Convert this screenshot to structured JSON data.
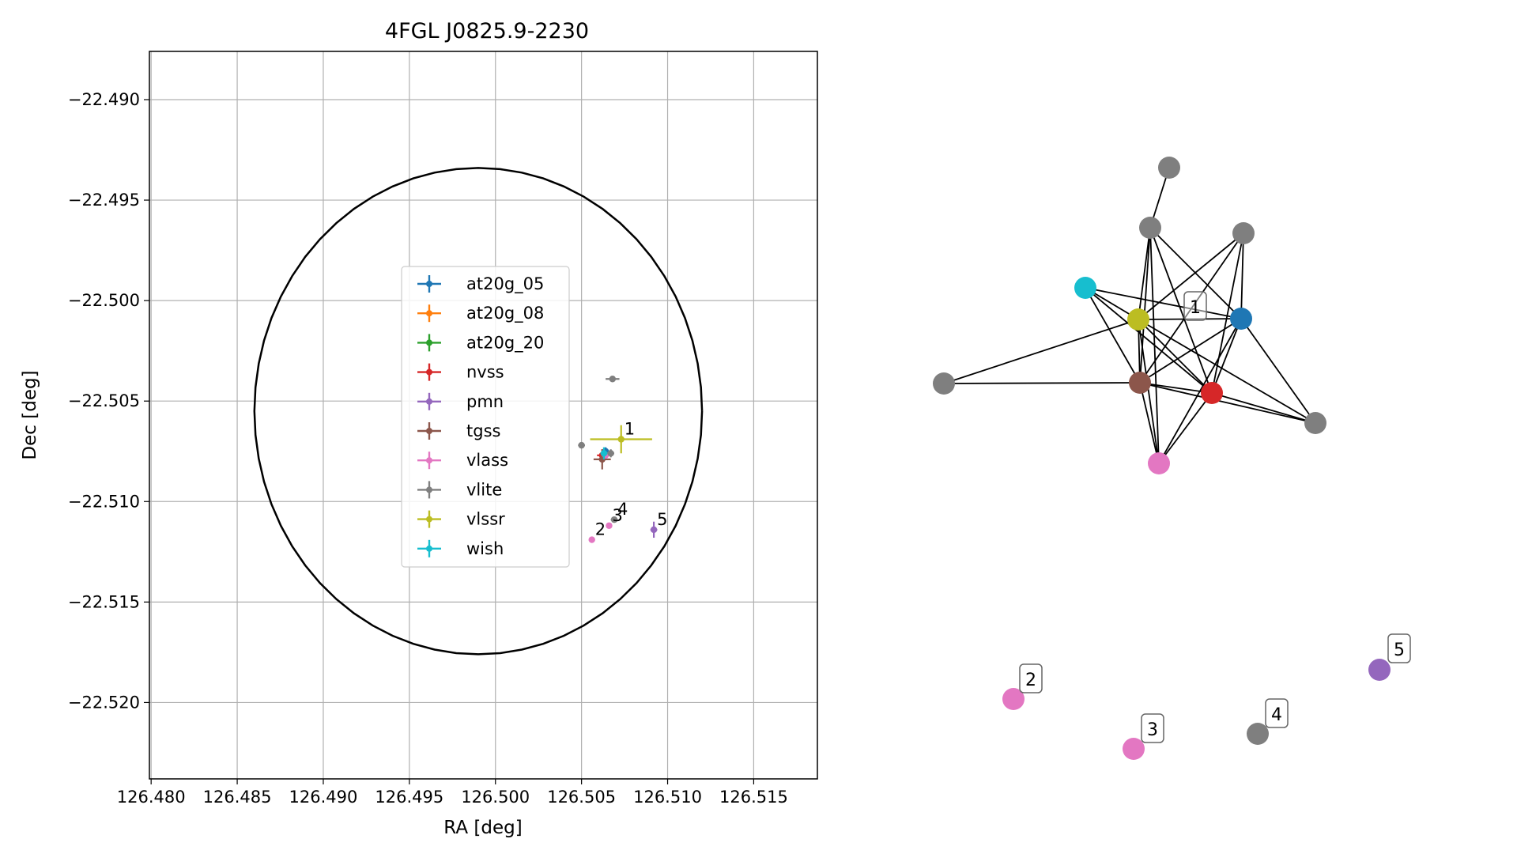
{
  "chart_data": [
    {
      "type": "scatter",
      "title": "4FGL J0825.9-2230",
      "xlabel": "RA [deg]",
      "ylabel": "Dec [deg]",
      "xlim": [
        126.4795,
        126.5185
      ],
      "ylim": [
        -22.524,
        -22.4875
      ],
      "grid": true,
      "legend": "center",
      "xticks": [
        126.48,
        126.485,
        126.49,
        126.495,
        126.5,
        126.505,
        126.51,
        126.515
      ],
      "xtick_labels": [
        "126.480",
        "126.485",
        "126.490",
        "126.495",
        "126.500",
        "126.505",
        "126.510",
        "126.515"
      ],
      "yticks": [
        -22.49,
        -22.495,
        -22.5,
        -22.505,
        -22.51,
        -22.515,
        -22.52
      ],
      "ytick_labels": [
        "−22.490",
        "−22.495",
        "−22.500",
        "−22.505",
        "−22.510",
        "−22.515",
        "−22.520"
      ],
      "ellipse": {
        "center": [
          126.499,
          -22.5055
        ],
        "semi_ra": 0.013,
        "semi_dec": 0.0121,
        "color": "#000000"
      },
      "series": [
        {
          "name": "at20g_05",
          "color": "#1f77b4",
          "points": [
            {
              "x": 126.5064,
              "y": -22.5075,
              "xerr": 0.0002,
              "yerr": 0.0002
            }
          ]
        },
        {
          "name": "at20g_08",
          "color": "#ff7f0e",
          "points": []
        },
        {
          "name": "at20g_20",
          "color": "#2ca02c",
          "points": []
        },
        {
          "name": "nvss",
          "color": "#d62728",
          "points": [
            {
              "x": 126.5062,
              "y": -22.5077,
              "xerr": 0.0003,
              "yerr": 0.0003
            }
          ]
        },
        {
          "name": "pmn",
          "color": "#9467bd",
          "points": [
            {
              "x": 126.5092,
              "y": -22.5114,
              "xerr": 0.0002,
              "yerr": 0.0004
            }
          ]
        },
        {
          "name": "tgss",
          "color": "#8c564b",
          "points": [
            {
              "x": 126.5062,
              "y": -22.5079,
              "xerr": 0.0005,
              "yerr": 0.0005
            }
          ]
        },
        {
          "name": "vlass",
          "color": "#e377c2",
          "points": [
            {
              "x": 126.5064,
              "y": -22.5077,
              "xerr": 0.0001,
              "yerr": 0.0001
            },
            {
              "x": 126.5056,
              "y": -22.5119,
              "xerr": 0.0001,
              "yerr": 0.0001
            },
            {
              "x": 126.5066,
              "y": -22.5112,
              "xerr": 0.0001,
              "yerr": 0.0001
            }
          ]
        },
        {
          "name": "vlite",
          "color": "#7f7f7f",
          "points": [
            {
              "x": 126.5068,
              "y": -22.5039,
              "xerr": 0.0004,
              "yerr": 0.0001
            },
            {
              "x": 126.5067,
              "y": -22.5076,
              "xerr": 0.0002,
              "yerr": 0.0002
            },
            {
              "x": 126.505,
              "y": -22.5072,
              "xerr": 0.0002,
              "yerr": 0.0001
            },
            {
              "x": 126.5069,
              "y": -22.5109,
              "xerr": 0.0002,
              "yerr": 0.0001
            }
          ]
        },
        {
          "name": "vlssr",
          "color": "#bcbd22",
          "points": [
            {
              "x": 126.5073,
              "y": -22.5069,
              "xerr": 0.0018,
              "yerr": 0.0007
            }
          ]
        },
        {
          "name": "wish",
          "color": "#17becf",
          "points": [
            {
              "x": 126.5063,
              "y": -22.5076,
              "xerr": 0.0002,
              "yerr": 0.0003
            }
          ]
        }
      ],
      "annotations": [
        {
          "text": "1",
          "x": 126.5073,
          "y": -22.5069
        },
        {
          "text": "2",
          "x": 126.5056,
          "y": -22.5119
        },
        {
          "text": "3",
          "x": 126.5066,
          "y": -22.5112
        },
        {
          "text": "4",
          "x": 126.5069,
          "y": -22.5109
        },
        {
          "text": "5",
          "x": 126.5092,
          "y": -22.5114
        }
      ]
    },
    {
      "type": "network",
      "nodes": [
        {
          "id": "n_blue",
          "color": "#1f77b4"
        },
        {
          "id": "n_red",
          "color": "#d62728"
        },
        {
          "id": "n_brown",
          "color": "#8c564b"
        },
        {
          "id": "n_olive",
          "color": "#bcbd22",
          "label": "1"
        },
        {
          "id": "n_cyan",
          "color": "#17becf"
        },
        {
          "id": "n_pink",
          "color": "#e377c2"
        },
        {
          "id": "n_gray_top",
          "color": "#7f7f7f"
        },
        {
          "id": "n_gray_a",
          "color": "#7f7f7f"
        },
        {
          "id": "n_gray_b",
          "color": "#7f7f7f"
        },
        {
          "id": "n_gray_left",
          "color": "#7f7f7f"
        },
        {
          "id": "n_gray_right",
          "color": "#7f7f7f"
        },
        {
          "id": "n_pink2",
          "color": "#e377c2",
          "label": "2"
        },
        {
          "id": "n_pink3",
          "color": "#e377c2",
          "label": "3"
        },
        {
          "id": "n_gray4",
          "color": "#7f7f7f",
          "label": "4"
        },
        {
          "id": "n_purple5",
          "color": "#9467bd",
          "label": "5"
        }
      ],
      "edges": [
        [
          "n_gray_top",
          "n_gray_a"
        ],
        [
          "n_gray_a",
          "n_olive"
        ],
        [
          "n_gray_a",
          "n_brown"
        ],
        [
          "n_gray_a",
          "n_red"
        ],
        [
          "n_gray_a",
          "n_pink"
        ],
        [
          "n_gray_a",
          "n_blue"
        ],
        [
          "n_gray_b",
          "n_olive"
        ],
        [
          "n_gray_b",
          "n_brown"
        ],
        [
          "n_gray_b",
          "n_blue"
        ],
        [
          "n_gray_b",
          "n_red"
        ],
        [
          "n_cyan",
          "n_olive"
        ],
        [
          "n_cyan",
          "n_blue"
        ],
        [
          "n_cyan",
          "n_brown"
        ],
        [
          "n_cyan",
          "n_red"
        ],
        [
          "n_olive",
          "n_blue"
        ],
        [
          "n_olive",
          "n_brown"
        ],
        [
          "n_olive",
          "n_red"
        ],
        [
          "n_olive",
          "n_pink"
        ],
        [
          "n_olive",
          "n_gray_left"
        ],
        [
          "n_olive",
          "n_gray_right"
        ],
        [
          "n_blue",
          "n_brown"
        ],
        [
          "n_blue",
          "n_red"
        ],
        [
          "n_blue",
          "n_pink"
        ],
        [
          "n_blue",
          "n_gray_right"
        ],
        [
          "n_brown",
          "n_red"
        ],
        [
          "n_brown",
          "n_pink"
        ],
        [
          "n_brown",
          "n_gray_left"
        ],
        [
          "n_brown",
          "n_gray_right"
        ],
        [
          "n_red",
          "n_pink"
        ],
        [
          "n_red",
          "n_gray_right"
        ]
      ]
    }
  ]
}
